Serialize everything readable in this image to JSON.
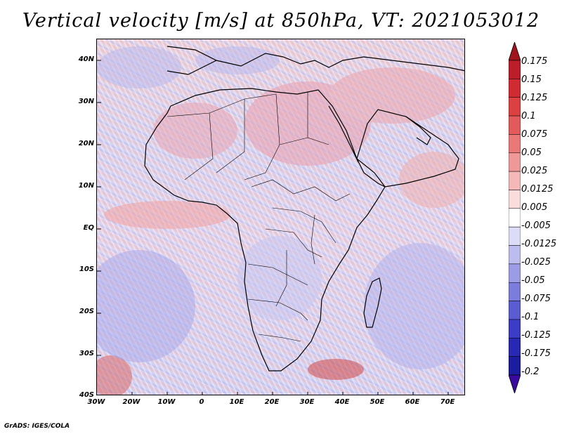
{
  "title": "Vertical velocity [m/s] at 850hPa, VT: 2021053012",
  "credit": "GrADS: IGES/COLA",
  "map": {
    "lat_labels": [
      "40N",
      "30N",
      "20N",
      "10N",
      "EQ",
      "10S",
      "20S",
      "30S",
      "40S"
    ],
    "lon_labels": [
      "30W",
      "20W",
      "10W",
      "0",
      "10E",
      "20E",
      "30E",
      "40E",
      "50E",
      "60E",
      "70E"
    ],
    "lat_range": [
      -40,
      45
    ],
    "lon_range": [
      -30,
      75
    ]
  },
  "colorbar": {
    "levels": [
      "0.175",
      "0.15",
      "0.125",
      "0.1",
      "0.075",
      "0.05",
      "0.025",
      "0.0125",
      "0.005",
      "-0.005",
      "-0.0125",
      "-0.025",
      "-0.05",
      "-0.075",
      "-0.1",
      "-0.125",
      "-0.175",
      "-0.2"
    ],
    "colors": [
      "#a0141e",
      "#bb1e28",
      "#d02a32",
      "#dc4040",
      "#e35a5a",
      "#e97878",
      "#ef9898",
      "#f5b8b8",
      "#fadcdc",
      "#ffffff",
      "#dcdcf7",
      "#bcbcef",
      "#9c9ce6",
      "#7c7cdc",
      "#5c5cd2",
      "#3c3cc6",
      "#2828b4",
      "#1c1c9e",
      "#3a0aa0"
    ]
  }
}
